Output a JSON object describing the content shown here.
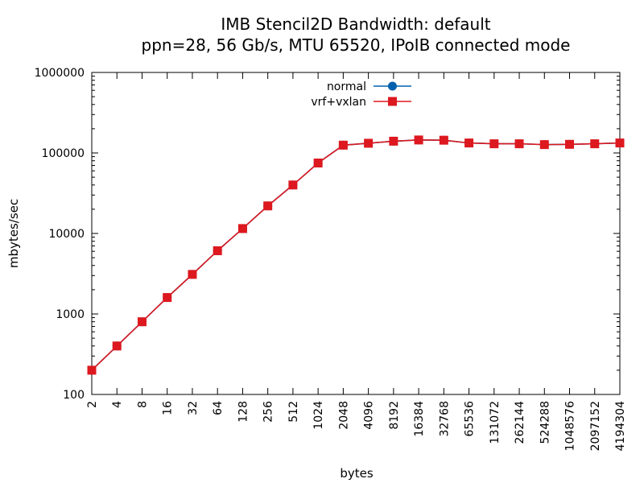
{
  "chart_data": {
    "type": "line",
    "title": "IMB Stencil2D Bandwidth: default",
    "subtitle": "ppn=28, 56 Gb/s, MTU 65520, IPoIB connected mode",
    "xlabel": "bytes",
    "ylabel": "mbytes/sec",
    "xscale": "log2",
    "yscale": "log10",
    "xlim": [
      2,
      4194304
    ],
    "ylim": [
      100,
      1000000
    ],
    "grid": false,
    "legend_position": "top-center",
    "x_tick_labels": [
      "2",
      "4",
      "8",
      "16",
      "32",
      "64",
      "128",
      "256",
      "512",
      "1024",
      "2048",
      "4096",
      "8192",
      "16384",
      "32768",
      "65536",
      "131072",
      "262144",
      "524288",
      "1048576",
      "2097152",
      "4194304"
    ],
    "y_tick_labels": [
      "100",
      "1000",
      "10000",
      "100000",
      "1000000"
    ],
    "x": [
      2,
      4,
      8,
      16,
      32,
      64,
      128,
      256,
      512,
      1024,
      2048,
      4096,
      8192,
      16384,
      32768,
      65536,
      131072,
      262144,
      524288,
      1048576,
      2097152,
      4194304
    ],
    "series": [
      {
        "name": "normal",
        "color": "#0060ad",
        "marker": "circle",
        "values": [
          200,
          400,
          800,
          1600,
          3100,
          6100,
          11500,
          22000,
          40000,
          75000,
          125000,
          132000,
          140000,
          145000,
          144000,
          133000,
          130000,
          130000,
          127000,
          128000,
          130000,
          133000
        ]
      },
      {
        "name": "vrf+vxlan",
        "color": "#dd181f",
        "marker": "square",
        "values": [
          200,
          400,
          800,
          1600,
          3100,
          6100,
          11500,
          22000,
          40000,
          75000,
          125000,
          132000,
          140000,
          145000,
          144000,
          133000,
          130000,
          130000,
          127000,
          128000,
          130000,
          133000
        ]
      }
    ]
  }
}
